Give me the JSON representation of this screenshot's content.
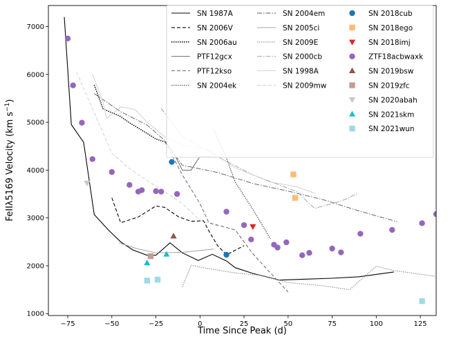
{
  "chart_data": {
    "type": "line",
    "title": "",
    "xlabel": "Time Since Peak (d)",
    "ylabel_parts": [
      "FeII",
      "λ",
      "5169 Velocity (km s",
      "−1",
      ")"
    ],
    "xlim": [
      -86,
      134
    ],
    "ylim": [
      960,
      7440
    ],
    "xticks": [
      -75,
      -50,
      -25,
      0,
      25,
      50,
      75,
      100,
      125
    ],
    "yticks": [
      1000,
      2000,
      3000,
      4000,
      5000,
      6000,
      7000
    ],
    "grid": false,
    "legend_position": "top-right",
    "series": [
      {
        "name": "SN 1987A",
        "kind": "line",
        "color": "#000000",
        "dash": "",
        "width": 1.1,
        "points": [
          [
            -77,
            7200
          ],
          [
            -73,
            4950
          ],
          [
            -66,
            4580
          ],
          [
            -60,
            3070
          ],
          [
            -52,
            2750
          ],
          [
            -45,
            2500
          ],
          [
            -38,
            2330
          ],
          [
            -30,
            2220
          ],
          [
            -25,
            2220
          ],
          [
            -17,
            2480
          ],
          [
            -10,
            2270
          ],
          [
            -1,
            2110
          ],
          [
            7,
            2240
          ],
          [
            15,
            2100
          ],
          [
            20,
            1960
          ],
          [
            30,
            1840
          ],
          [
            45,
            1700
          ],
          [
            60,
            1720
          ],
          [
            75,
            1740
          ],
          [
            90,
            1770
          ],
          [
            110,
            1870
          ]
        ]
      },
      {
        "name": "SN 2006V",
        "kind": "line",
        "color": "#000000",
        "dash": "5,3",
        "width": 1.1,
        "points": [
          [
            -50,
            3420
          ],
          [
            -45,
            2900
          ],
          [
            -35,
            3020
          ],
          [
            -25,
            3250
          ],
          [
            -20,
            3220
          ],
          [
            -12,
            3020
          ],
          [
            -5,
            2930
          ],
          [
            2,
            2940
          ],
          [
            5,
            2730
          ],
          [
            10,
            2420
          ],
          [
            15,
            2230
          ],
          [
            25,
            2420
          ]
        ]
      },
      {
        "name": "SN 2006au",
        "kind": "line",
        "color": "#000000",
        "dash": "1.5,1.5",
        "width": 1.5,
        "points": [
          [
            -60,
            5780
          ],
          [
            -55,
            5280
          ],
          [
            -45,
            5120
          ],
          [
            -40,
            4990
          ],
          [
            -35,
            4880
          ],
          [
            -25,
            4650
          ],
          [
            -20,
            4590
          ]
        ]
      },
      {
        "name": "PTF12gcx",
        "kind": "line",
        "color": "#555555",
        "dash": "",
        "width": 0.9,
        "points": [
          [
            -20,
            4600
          ],
          [
            -15,
            4360
          ],
          [
            -10,
            4000
          ],
          [
            -5,
            4000
          ],
          [
            0,
            4290
          ],
          [
            10,
            4270
          ]
        ]
      },
      {
        "name": "PTF12kso",
        "kind": "line",
        "color": "#555555",
        "dash": "5,3",
        "width": 0.9,
        "points": [
          [
            -20,
            4600
          ],
          [
            -10,
            3900
          ],
          [
            0,
            3300
          ],
          [
            5,
            2900
          ],
          [
            20,
            2750
          ],
          [
            30,
            2250
          ],
          [
            50,
            1450
          ]
        ]
      },
      {
        "name": "SN 2004ek",
        "kind": "line",
        "color": "#555555",
        "dash": "1.5,1.5",
        "width": 1.3,
        "points": [
          [
            8,
            4830
          ],
          [
            15,
            4250
          ],
          [
            20,
            3750
          ],
          [
            30,
            3180
          ],
          [
            40,
            2560
          ]
        ]
      },
      {
        "name": "SN 2004em",
        "kind": "line",
        "color": "#555555",
        "dash": "7,2,1.5,2",
        "width": 0.9,
        "points": [
          [
            -60,
            5600
          ],
          [
            -45,
            5220
          ],
          [
            -30,
            4940
          ],
          [
            -20,
            4620
          ],
          [
            -10,
            4100
          ],
          [
            10,
            3950
          ],
          [
            30,
            3720
          ],
          [
            50,
            3560
          ],
          [
            70,
            3380
          ],
          [
            90,
            3150
          ],
          [
            112,
            2920
          ]
        ]
      },
      {
        "name": "SN 2005ci",
        "kind": "line",
        "color": "#999999",
        "dash": "",
        "width": 0.9,
        "points": [
          [
            -46,
            2480
          ],
          [
            -35,
            2350
          ],
          [
            -25,
            2270
          ],
          [
            -10,
            2280
          ],
          [
            8,
            2350
          ]
        ]
      },
      {
        "name": "SN 2009E",
        "kind": "line",
        "color": "#999999",
        "dash": "1.5,1.5",
        "width": 1.3,
        "points": [
          [
            -10,
            1560
          ],
          [
            -5,
            2010
          ],
          [
            5,
            1940
          ],
          [
            20,
            1850
          ],
          [
            35,
            1800
          ],
          [
            50,
            1650
          ],
          [
            70,
            1580
          ],
          [
            85,
            1500
          ],
          [
            95,
            1830
          ],
          [
            100,
            1990
          ],
          [
            110,
            1900
          ],
          [
            134,
            1780
          ]
        ]
      },
      {
        "name": "SN 2000cb",
        "kind": "line",
        "color": "#999999",
        "dash": "7,2,1.5,2",
        "width": 0.9,
        "points": [
          [
            -22,
            5290
          ],
          [
            -10,
            4710
          ],
          [
            10,
            4280
          ],
          [
            30,
            3900
          ],
          [
            55,
            3550
          ],
          [
            65,
            3200
          ],
          [
            80,
            3350
          ],
          [
            90,
            3520
          ]
        ]
      },
      {
        "name": "SN 1998A",
        "kind": "line",
        "color": "#cccccc",
        "dash": "",
        "width": 0.9,
        "points": [
          [
            -61,
            6000
          ],
          [
            -55,
            5420
          ],
          [
            -53,
            5080
          ],
          [
            -45,
            5320
          ],
          [
            -37,
            5270
          ],
          [
            -30,
            5000
          ],
          [
            -20,
            4700
          ],
          [
            -10,
            4520
          ],
          [
            5,
            4420
          ],
          [
            20,
            4050
          ],
          [
            40,
            3750
          ],
          [
            55,
            3650
          ],
          [
            65,
            3520
          ]
        ]
      },
      {
        "name": "SN 2009mw",
        "kind": "line",
        "color": "#cccccc",
        "dash": "5,3",
        "width": 0.9,
        "points": [
          [
            -70,
            6050
          ],
          [
            -60,
            5200
          ],
          [
            -50,
            4350
          ],
          [
            -40,
            4030
          ],
          [
            -30,
            3780
          ],
          [
            -20,
            3550
          ],
          [
            -10,
            3300
          ],
          [
            0,
            2950
          ],
          [
            10,
            2830
          ]
        ]
      },
      {
        "name": "SN 2018cub",
        "kind": "marker",
        "marker": "circle",
        "color": "#1f77b4",
        "points": [
          [
            -16,
            4170
          ],
          [
            15,
            2230
          ]
        ]
      },
      {
        "name": "SN 2018ego",
        "kind": "marker",
        "marker": "square",
        "color": "#ffbb78",
        "points": [
          [
            53,
            3910
          ],
          [
            54,
            3420
          ]
        ]
      },
      {
        "name": "SN 2018imj",
        "kind": "marker",
        "marker": "triangle-down",
        "color": "#d62728",
        "points": [
          [
            30,
            2820
          ]
        ]
      },
      {
        "name": "ZTF18acbwaxk",
        "kind": "marker",
        "marker": "circle",
        "color": "#9467bd",
        "points": [
          [
            -75,
            6750
          ],
          [
            -72,
            5770
          ],
          [
            -67,
            4990
          ],
          [
            -61,
            4230
          ],
          [
            -50,
            3960
          ],
          [
            -40,
            3690
          ],
          [
            -35,
            3550
          ],
          [
            -33,
            3580
          ],
          [
            -25,
            3560
          ],
          [
            -22,
            3550
          ],
          [
            -13,
            3500
          ],
          [
            15,
            3130
          ],
          [
            25,
            2850
          ],
          [
            29,
            2550
          ],
          [
            42,
            2440
          ],
          [
            44,
            2380
          ],
          [
            49,
            2490
          ],
          [
            58,
            2220
          ],
          [
            62,
            2270
          ],
          [
            75,
            2360
          ],
          [
            80,
            2280
          ],
          [
            91,
            2670
          ],
          [
            109,
            2750
          ],
          [
            126,
            2890
          ],
          [
            134,
            3080
          ]
        ]
      },
      {
        "name": "SN 2019bsw",
        "kind": "marker",
        "marker": "triangle-up",
        "color": "#8c564b",
        "points": [
          [
            -15,
            2620
          ]
        ]
      },
      {
        "name": "SN 2019zfc",
        "kind": "marker",
        "marker": "square",
        "color": "#c49c94",
        "points": [
          [
            -28,
            2200
          ]
        ]
      },
      {
        "name": "SN 2020abah",
        "kind": "marker",
        "marker": "triangle-down",
        "color": "#c7c7c7",
        "points": [
          [
            -64,
            3730
          ]
        ]
      },
      {
        "name": "SN 2021skm",
        "kind": "marker",
        "marker": "triangle-up",
        "color": "#17becf",
        "points": [
          [
            -30,
            2060
          ],
          [
            -19,
            2240
          ]
        ]
      },
      {
        "name": "SN 2021wun",
        "kind": "marker",
        "marker": "square",
        "color": "#9edae5",
        "points": [
          [
            -30,
            1690
          ],
          [
            -24,
            1710
          ],
          [
            126,
            1260
          ]
        ]
      }
    ]
  }
}
